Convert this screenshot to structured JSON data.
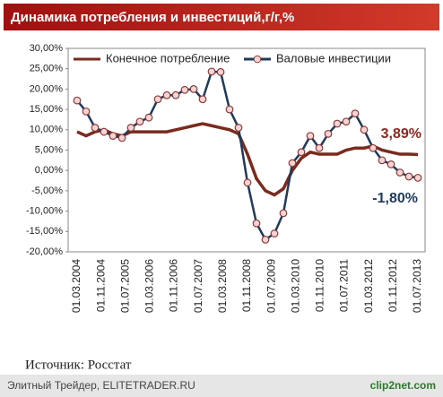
{
  "chart_data": {
    "type": "line",
    "title": "Динамика потребления и инвестиций,г/г,%",
    "xticks": [
      "01.03.2004",
      "01.11.2004",
      "01.07.2005",
      "01.03.2006",
      "01.11.2006",
      "01.07.2007",
      "01.03.2008",
      "01.11.2008",
      "01.07.2009",
      "01.03.2010",
      "01.11.2010",
      "01.07.2011",
      "01.03.2012",
      "01.11.2012",
      "01.07.2013"
    ],
    "ylim": [
      -20,
      30
    ],
    "yticks": [
      {
        "value": 30,
        "label": "30,00%"
      },
      {
        "value": 25,
        "label": "25,00%"
      },
      {
        "value": 20,
        "label": "20,00%"
      },
      {
        "value": 15,
        "label": "15,00%"
      },
      {
        "value": 10,
        "label": "10,00%"
      },
      {
        "value": 5,
        "label": "5,00%"
      },
      {
        "value": 0,
        "label": "0,00%"
      },
      {
        "value": -5,
        "label": "-5,00%"
      },
      {
        "value": -10,
        "label": "-10,00%"
      },
      {
        "value": -15,
        "label": "-15,00%"
      },
      {
        "value": -20,
        "label": "-20,00%"
      }
    ],
    "legend": "top",
    "series": [
      {
        "name": "Конечное потребление",
        "color": "#7b2a1e",
        "markers": false,
        "values": [
          9.5,
          8.5,
          9.5,
          10,
          9,
          8.5,
          9.5,
          9.5,
          9.5,
          9.5,
          9.5,
          10,
          10.5,
          11,
          11.5,
          11,
          10.5,
          10,
          9,
          4,
          -2,
          -5,
          -6,
          -4.5,
          0,
          3,
          4.5,
          4,
          4,
          4,
          5,
          5.5,
          5.5,
          6,
          5,
          4.5,
          4,
          4,
          3.89
        ],
        "annotation": "3,89%"
      },
      {
        "name": "Валовые инвестиции",
        "color": "#1f3a5a",
        "markers": true,
        "values": [
          17.2,
          14.5,
          10.5,
          9.5,
          8.5,
          8,
          10.5,
          12,
          13,
          17.5,
          18.5,
          18.5,
          19.8,
          20,
          17.5,
          24.3,
          24.2,
          15,
          10.5,
          -3,
          -13,
          -17,
          -15.5,
          -10.5,
          1.8,
          4.5,
          8.5,
          5.5,
          9,
          11.5,
          12,
          14,
          10,
          5.5,
          2.5,
          1.5,
          -0.5,
          -1.5,
          -1.8
        ],
        "annotation": "-1,80%"
      }
    ]
  },
  "source": "Источник: Росстат",
  "footer": {
    "left": "Элитный Трейдер, ELITETRADER.RU",
    "right": "clip2net.com"
  }
}
